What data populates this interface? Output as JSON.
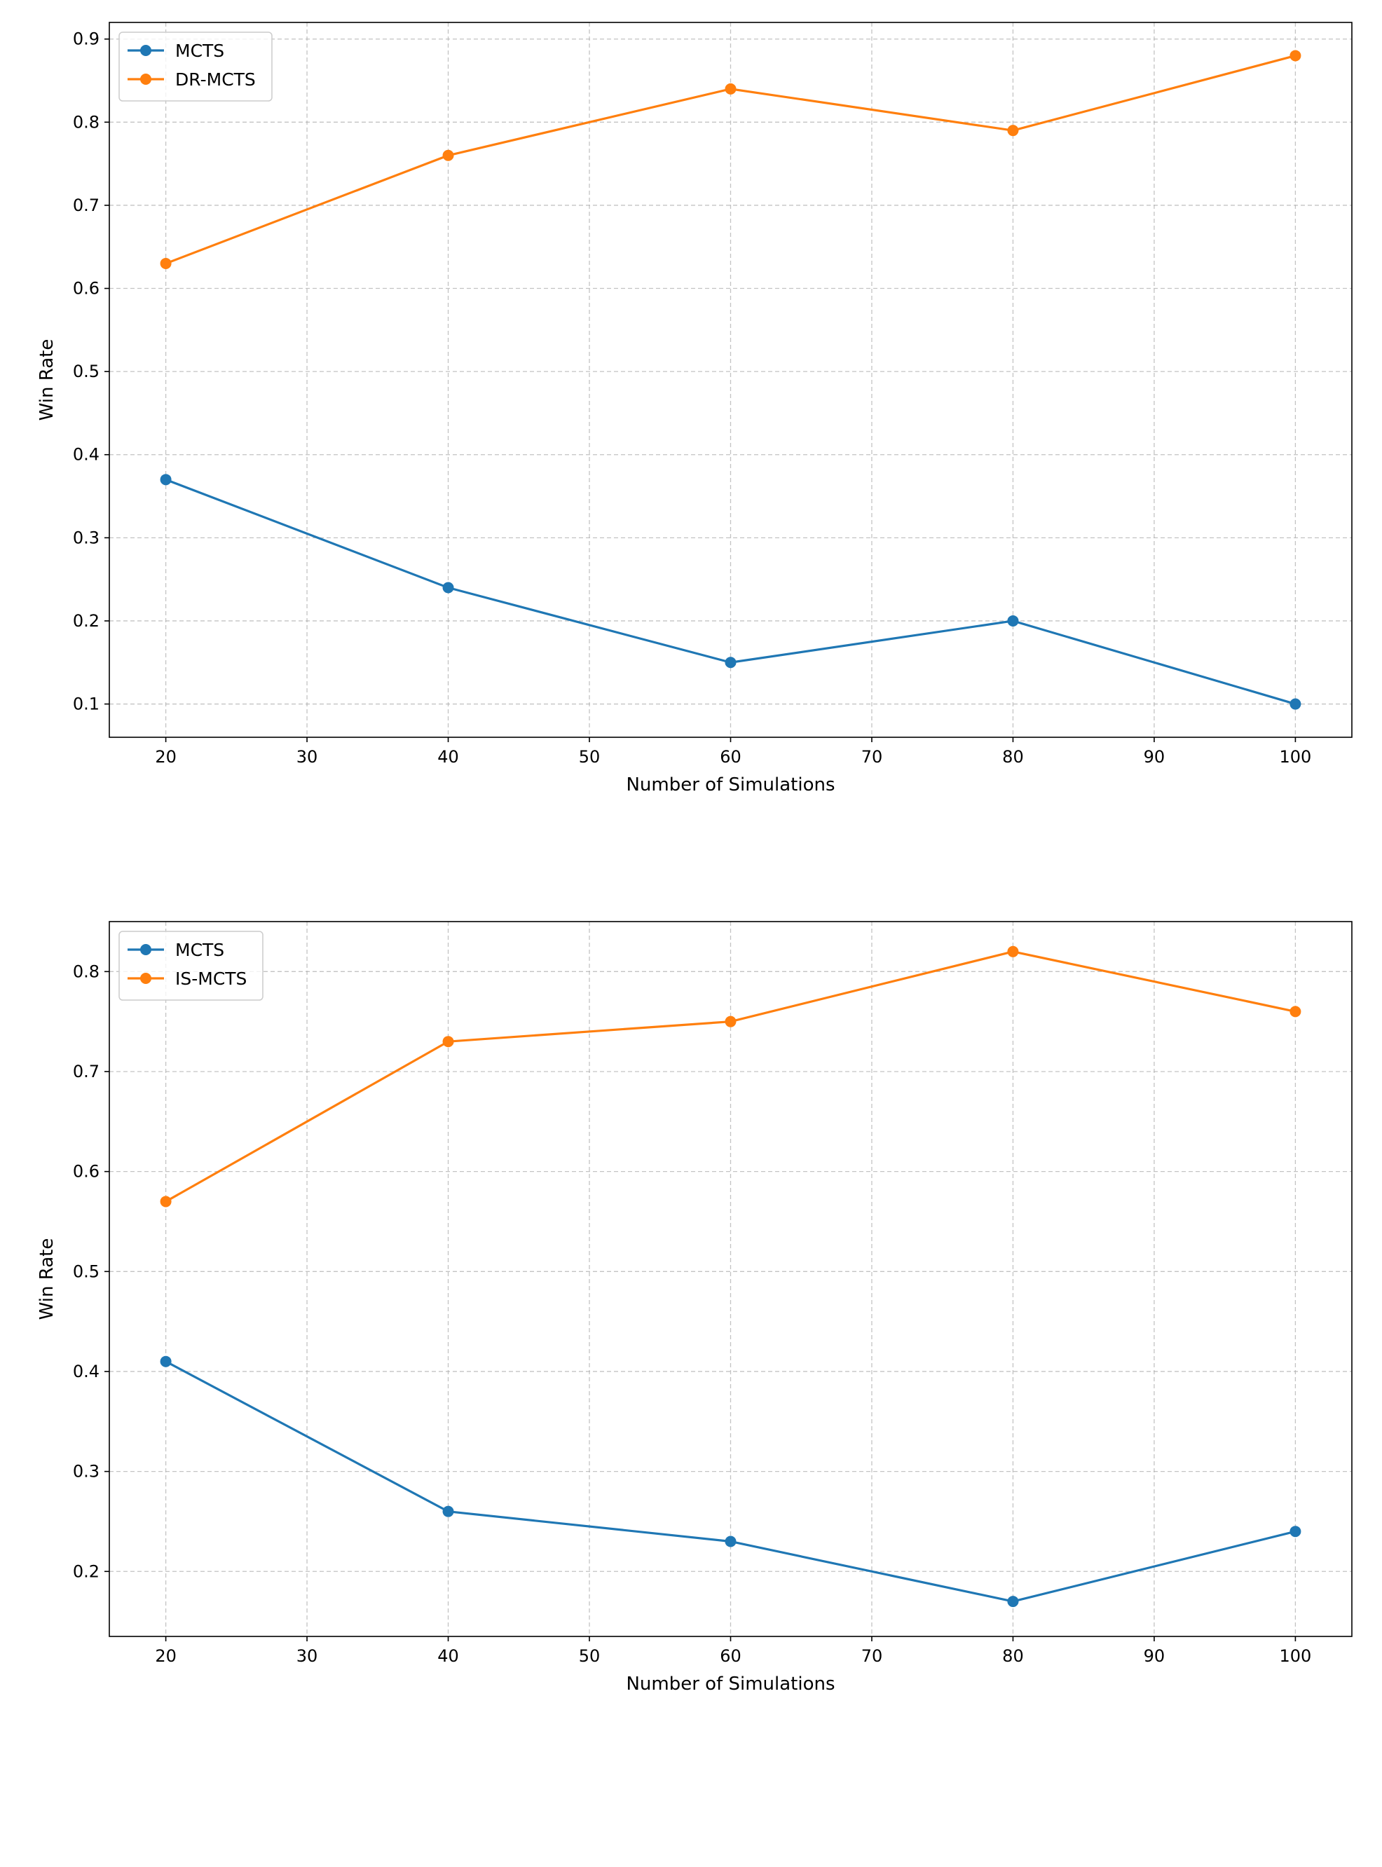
{
  "chart_data": [
    {
      "type": "line",
      "title": "",
      "xlabel": "Number of Simulations",
      "ylabel": "Win Rate",
      "x": [
        20,
        40,
        60,
        80,
        100
      ],
      "xlim": [
        16,
        104
      ],
      "ylim": [
        0.06,
        0.92
      ],
      "xticks": [
        20,
        30,
        40,
        50,
        60,
        70,
        80,
        90,
        100
      ],
      "yticks": [
        0.1,
        0.2,
        0.3,
        0.4,
        0.5,
        0.6,
        0.7,
        0.8,
        0.9
      ],
      "grid": true,
      "legend_position": "top-left",
      "series": [
        {
          "name": "MCTS",
          "color": "#1f77b4",
          "marker": "circle",
          "values": [
            0.37,
            0.24,
            0.15,
            0.2,
            0.1
          ]
        },
        {
          "name": "DR-MCTS",
          "color": "#ff7f0e",
          "marker": "circle",
          "values": [
            0.63,
            0.76,
            0.84,
            0.79,
            0.88
          ]
        }
      ]
    },
    {
      "type": "line",
      "title": "",
      "xlabel": "Number of Simulations",
      "ylabel": "Win Rate",
      "x": [
        20,
        40,
        60,
        80,
        100
      ],
      "xlim": [
        16,
        104
      ],
      "ylim": [
        0.135,
        0.85
      ],
      "xticks": [
        20,
        30,
        40,
        50,
        60,
        70,
        80,
        90,
        100
      ],
      "yticks": [
        0.2,
        0.3,
        0.4,
        0.5,
        0.6,
        0.7,
        0.8
      ],
      "grid": true,
      "legend_position": "top-left",
      "series": [
        {
          "name": "MCTS",
          "color": "#1f77b4",
          "marker": "circle",
          "values": [
            0.41,
            0.26,
            0.23,
            0.17,
            0.24
          ]
        },
        {
          "name": "IS-MCTS",
          "color": "#ff7f0e",
          "marker": "circle",
          "values": [
            0.57,
            0.73,
            0.75,
            0.82,
            0.76
          ]
        }
      ]
    }
  ]
}
